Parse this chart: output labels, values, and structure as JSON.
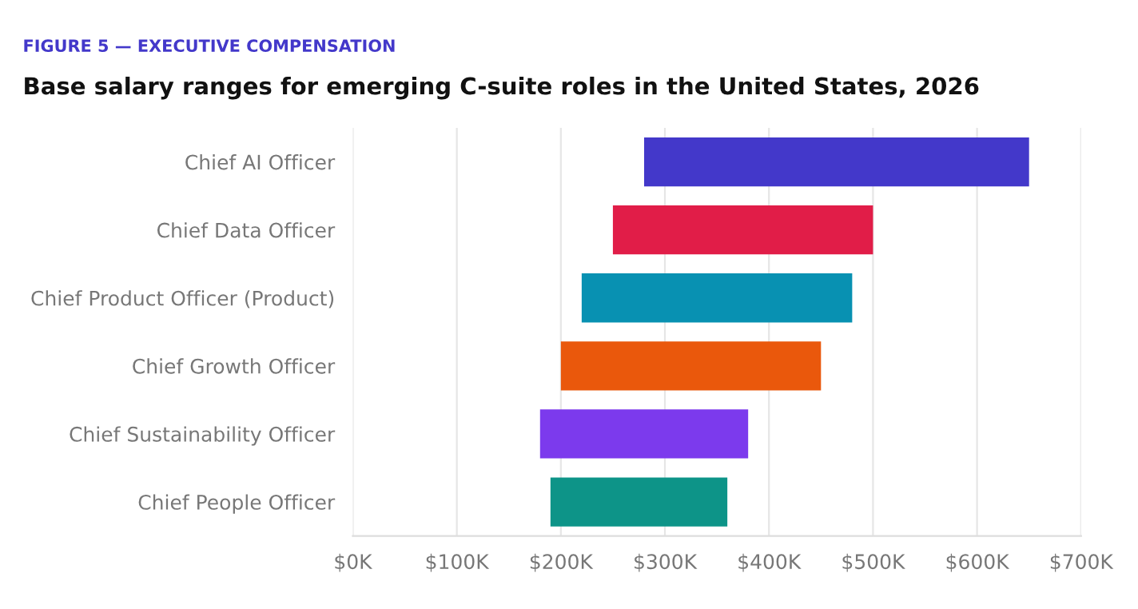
{
  "chart_data": {
    "type": "bar",
    "orientation": "horizontal",
    "subtitle": "FIGURE 5 — EXECUTIVE COMPENSATION",
    "title": "Base salary ranges for emerging C-suite roles in the United States, 2026",
    "categories": [
      "Chief AI Officer",
      "Chief Data Officer",
      "Chief Product Officer (Product)",
      "Chief Growth Officer",
      "Chief Sustainability Officer",
      "Chief People Officer"
    ],
    "base": [
      280000,
      250000,
      220000,
      200000,
      180000,
      190000
    ],
    "values": [
      370000,
      250000,
      260000,
      250000,
      200000,
      170000
    ],
    "colors": [
      "#4338ca",
      "#e11d48",
      "#0891b2",
      "#ea580c",
      "#7c3aed",
      "#0d9488"
    ],
    "xlim": [
      0,
      700000
    ],
    "xticks": [
      {
        "value": 0,
        "label": "$0K"
      },
      {
        "value": 100000,
        "label": "$100K"
      },
      {
        "value": 200000,
        "label": "$200K"
      },
      {
        "value": 300000,
        "label": "$300K"
      },
      {
        "value": 400000,
        "label": "$400K"
      },
      {
        "value": 500000,
        "label": "$500K"
      },
      {
        "value": 600000,
        "label": "$600K"
      },
      {
        "value": 700000,
        "label": "$700K"
      }
    ],
    "grid": "x"
  }
}
